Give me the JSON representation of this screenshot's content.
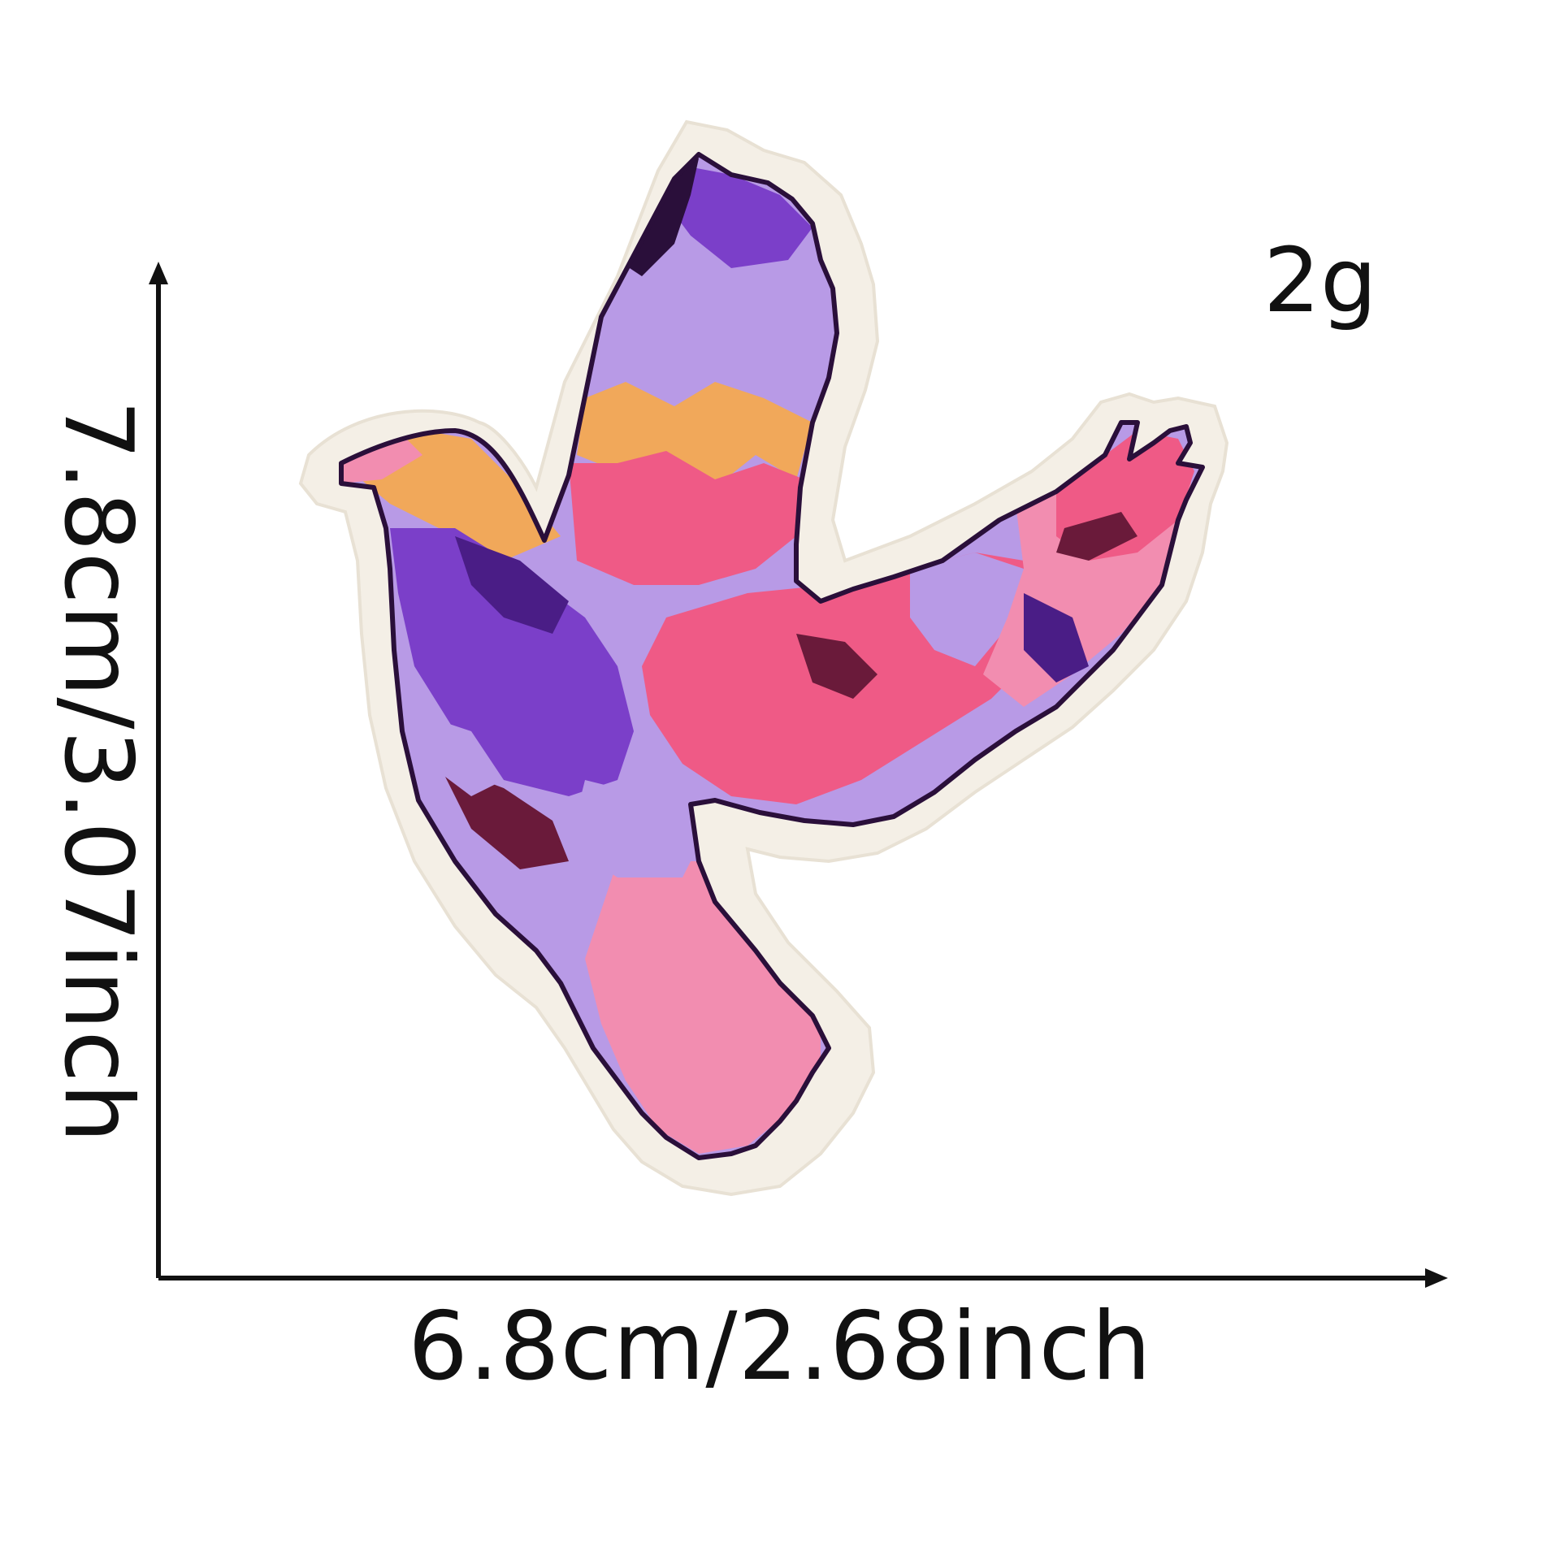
{
  "product": {
    "weight": "2g",
    "width_label": "6.8cm/2.68inch",
    "height_label": "7.8cm/3.07inch"
  },
  "colors": {
    "outline": "#2a0f3a",
    "backing": "#f4efe6",
    "lavender": "#b89ae6",
    "violet": "#7b3fc9",
    "deep_purple": "#4a1d86",
    "pink": "#ef5a86",
    "light_pink": "#f28db0",
    "orange": "#f1a85a",
    "maroon": "#6a1a3a",
    "axis": "#111111"
  },
  "icons": [
    "embroidered-bird-patch",
    "up-arrow-icon",
    "right-arrow-icon"
  ]
}
